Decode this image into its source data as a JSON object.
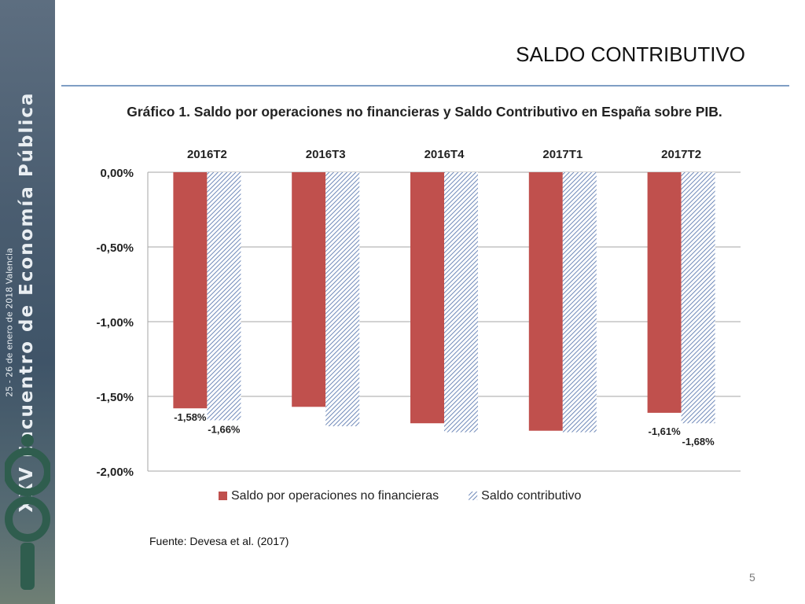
{
  "slide": {
    "title": "SALDO CONTRIBUTIVO",
    "subtitle": "Gráfico 1. Saldo por operaciones no financieras y Saldo Contributivo en España sobre PIB.",
    "source": "Fuente: Devesa et al. (2017)",
    "page_number": "5"
  },
  "sidebar": {
    "event_name": "XXV Encuentro de Economía Pública",
    "event_date_place": "25 - 26 de enero de 2018 Valencia",
    "logo_text": "iEP"
  },
  "chart_data": {
    "type": "bar",
    "categories": [
      "2016T2",
      "2016T3",
      "2016T4",
      "2017T1",
      "2017T2"
    ],
    "series": [
      {
        "name": "Saldo por operaciones no financieras",
        "values": [
          -1.58,
          -1.57,
          -1.68,
          -1.73,
          -1.61
        ],
        "color": "#c0504d",
        "pattern": "solid"
      },
      {
        "name": "Saldo contributivo",
        "values": [
          -1.66,
          -1.7,
          -1.74,
          -1.74,
          -1.68
        ],
        "color": "#6e88b8",
        "pattern": "diagonal-hatch"
      }
    ],
    "data_labels": [
      {
        "series": 0,
        "category": 0,
        "text": "-1,58%"
      },
      {
        "series": 1,
        "category": 0,
        "text": "-1,66%"
      },
      {
        "series": 0,
        "category": 4,
        "text": "-1,61%"
      },
      {
        "series": 1,
        "category": 4,
        "text": "-1,68%"
      }
    ],
    "y_ticks": [
      "0,00%",
      "-0,50%",
      "-1,00%",
      "-1,50%",
      "-2,00%"
    ],
    "ylim": [
      -2.0,
      0.0
    ],
    "category_axis": "top",
    "grid": true,
    "legend_position": "bottom"
  }
}
